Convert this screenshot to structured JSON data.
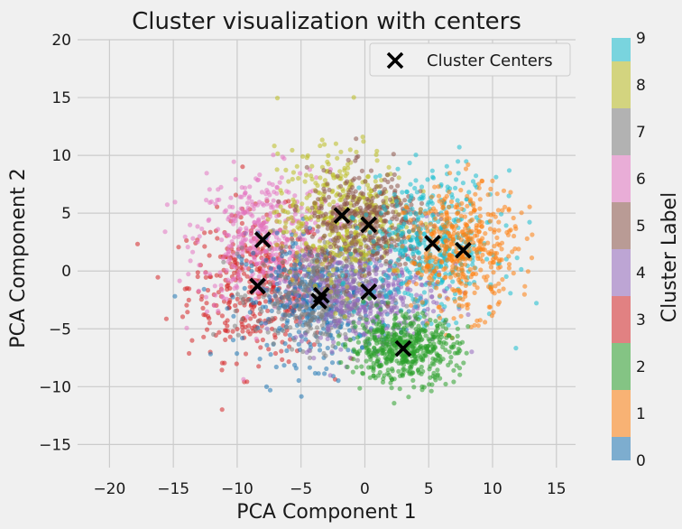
{
  "chart_data": {
    "type": "scatter",
    "title": "Cluster visualization with centers",
    "xlabel": "PCA Component 1",
    "ylabel": "PCA Component 2",
    "xlim": [
      -22.5,
      16.5
    ],
    "ylim": [
      -17,
      20
    ],
    "xticks": [
      -20,
      -15,
      -10,
      -5,
      0,
      5,
      10,
      15
    ],
    "yticks": [
      -15,
      -10,
      -5,
      0,
      5,
      10,
      15,
      20
    ],
    "grid": true,
    "legend": {
      "position": "top-right",
      "entries": [
        "Cluster Centers"
      ]
    },
    "colorbar": {
      "label": "Cluster Label",
      "ticks": [
        "0",
        "1",
        "2",
        "3",
        "4",
        "5",
        "6",
        "7",
        "8",
        "9"
      ],
      "colors": [
        "#1f77b4",
        "#ff7f0e",
        "#2ca02c",
        "#d62728",
        "#9467bd",
        "#8c564b",
        "#e377c2",
        "#7f7f7f",
        "#bcbd22",
        "#17becf"
      ]
    },
    "clusters": [
      {
        "label": 0,
        "color": "#1f77b4",
        "center": [
          -3.6,
          -2.6
        ],
        "spread": [
          4.0,
          3.5
        ]
      },
      {
        "label": 1,
        "color": "#ff7f0e",
        "center": [
          7.7,
          1.8
        ],
        "spread": [
          2.8,
          3.6
        ]
      },
      {
        "label": 2,
        "color": "#2ca02c",
        "center": [
          3.0,
          -6.7
        ],
        "spread": [
          2.8,
          1.9
        ]
      },
      {
        "label": 3,
        "color": "#d62728",
        "center": [
          -8.4,
          -1.3
        ],
        "spread": [
          3.6,
          4.2
        ]
      },
      {
        "label": 4,
        "color": "#9467bd",
        "center": [
          0.3,
          -1.8
        ],
        "spread": [
          3.8,
          3.2
        ]
      },
      {
        "label": 5,
        "color": "#8c564b",
        "center": [
          0.3,
          4.0
        ],
        "spread": [
          3.2,
          3.0
        ]
      },
      {
        "label": 6,
        "color": "#e377c2",
        "center": [
          -8.0,
          2.7
        ],
        "spread": [
          3.5,
          4.0
        ]
      },
      {
        "label": 7,
        "color": "#7f7f7f",
        "center": [
          -3.4,
          -2.1
        ],
        "spread": [
          3.4,
          3.0
        ]
      },
      {
        "label": 8,
        "color": "#bcbd22",
        "center": [
          -1.8,
          4.8
        ],
        "spread": [
          3.4,
          3.8
        ]
      },
      {
        "label": 9,
        "color": "#17becf",
        "center": [
          5.3,
          2.4
        ],
        "spread": [
          3.4,
          4.0
        ]
      }
    ],
    "centers": [
      {
        "x": -8.0,
        "y": 2.7
      },
      {
        "x": -8.4,
        "y": -1.3
      },
      {
        "x": -3.6,
        "y": -2.6
      },
      {
        "x": -3.4,
        "y": -2.1
      },
      {
        "x": -1.8,
        "y": 4.8
      },
      {
        "x": 0.3,
        "y": 4.0
      },
      {
        "x": 0.3,
        "y": -1.8
      },
      {
        "x": 5.3,
        "y": 2.4
      },
      {
        "x": 7.7,
        "y": 1.8
      },
      {
        "x": 3.0,
        "y": -6.7
      }
    ]
  }
}
